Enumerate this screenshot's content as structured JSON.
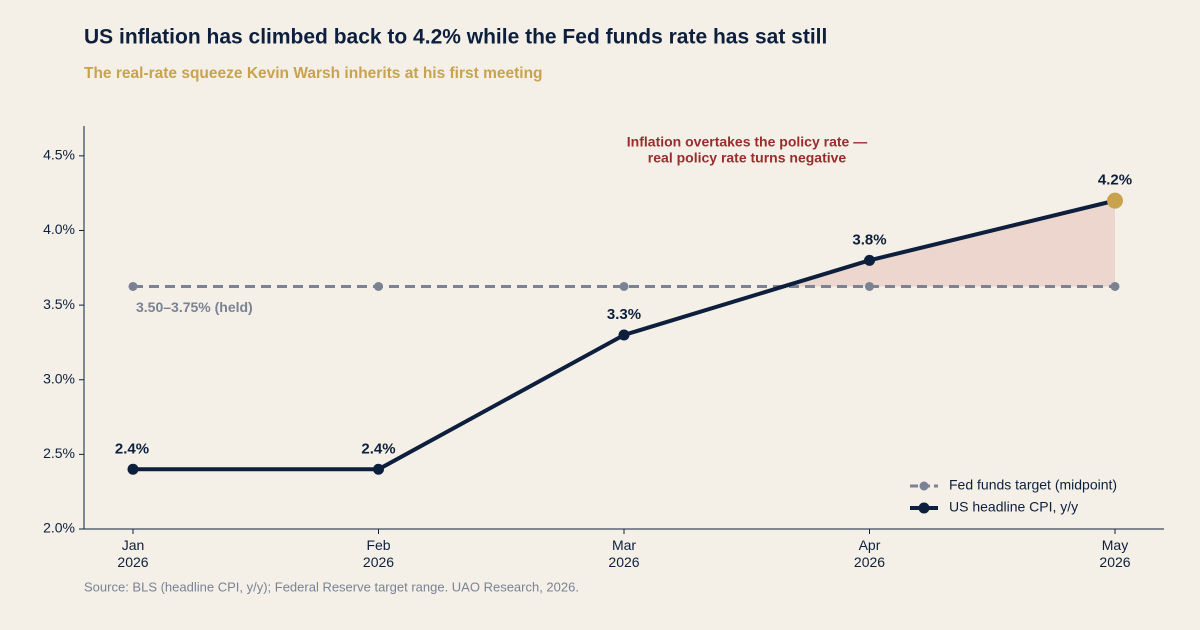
{
  "chart_data": {
    "type": "line",
    "title": "US inflation has climbed back to 4.2% while the Fed funds rate has sat still",
    "subtitle": "The real-rate squeeze Kevin Warsh inherits at his first meeting",
    "categories": [
      "Jan 2026",
      "Feb 2026",
      "Mar 2026",
      "Apr 2026",
      "May 2026"
    ],
    "series": [
      {
        "name": "Fed funds target (midpoint)",
        "color": "#7a8294",
        "dashed": true,
        "values": [
          3.625,
          3.625,
          3.625,
          3.625,
          3.625
        ]
      },
      {
        "name": "US headline CPI, y/y",
        "color": "#0d1f3c",
        "highlight_color": "#c9a24e",
        "values": [
          2.4,
          2.4,
          3.3,
          3.8,
          4.2
        ],
        "value_labels": [
          "2.4%",
          "2.4%",
          "3.3%",
          "3.8%",
          "4.2%"
        ]
      }
    ],
    "ylim": [
      2.0,
      4.7
    ],
    "yticks": [
      {
        "value": 2.0,
        "label": "2.0%"
      },
      {
        "value": 2.5,
        "label": "2.5%"
      },
      {
        "value": 3.0,
        "label": "3.0%"
      },
      {
        "value": 3.5,
        "label": "3.5%"
      },
      {
        "value": 4.0,
        "label": "4.0%"
      },
      {
        "value": 4.5,
        "label": "4.5%"
      }
    ],
    "series_label": "3.50–3.75% (held)",
    "annotation": [
      "Inflation overtakes the policy rate —",
      "real policy rate turns negative"
    ],
    "legend": "lower right",
    "source": "Source: BLS (headline CPI, y/y); Federal Reserve target range.  UAO Research, 2026."
  }
}
